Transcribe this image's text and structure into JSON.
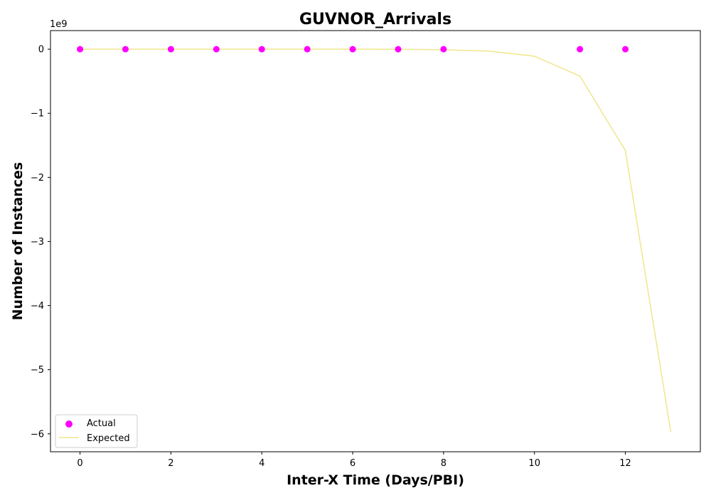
{
  "chart_data": {
    "type": "scatter",
    "title": "GUVNOR_Arrivals",
    "xlabel": "Inter-X Time (Days/PBI)",
    "ylabel": "Number of Instances",
    "y_offset_label": "1e9",
    "xlim": [
      -0.65,
      13.65
    ],
    "ylim": [
      -6.28,
      0.29
    ],
    "x_ticks": [
      0,
      2,
      4,
      6,
      8,
      10,
      12
    ],
    "y_ticks": [
      0,
      -1,
      -2,
      -3,
      -4,
      -5,
      -6
    ],
    "x_tick_labels": [
      "0",
      "2",
      "4",
      "6",
      "8",
      "10",
      "12"
    ],
    "y_tick_labels": [
      "0",
      "−1",
      "−2",
      "−3",
      "−4",
      "−5",
      "−6"
    ],
    "grid": false,
    "legend_position": "lower-left",
    "series": [
      {
        "name": "Actual",
        "kind": "scatter",
        "color": "#ff00ff",
        "x": [
          0,
          1,
          2,
          3,
          4,
          5,
          6,
          7,
          8,
          11,
          12
        ],
        "y": [
          0,
          0,
          0,
          0,
          0,
          0,
          0,
          0,
          0,
          0,
          0
        ]
      },
      {
        "name": "Expected",
        "kind": "line",
        "color": "#f0e68c",
        "x": [
          0,
          1,
          2,
          3,
          4,
          5,
          6,
          7,
          8,
          9,
          10,
          11,
          12,
          13
        ],
        "y": [
          0,
          0,
          0,
          0,
          0,
          0,
          0,
          -0.002,
          -0.008,
          -0.03,
          -0.11,
          -0.42,
          -1.58,
          -5.97
        ]
      }
    ]
  }
}
